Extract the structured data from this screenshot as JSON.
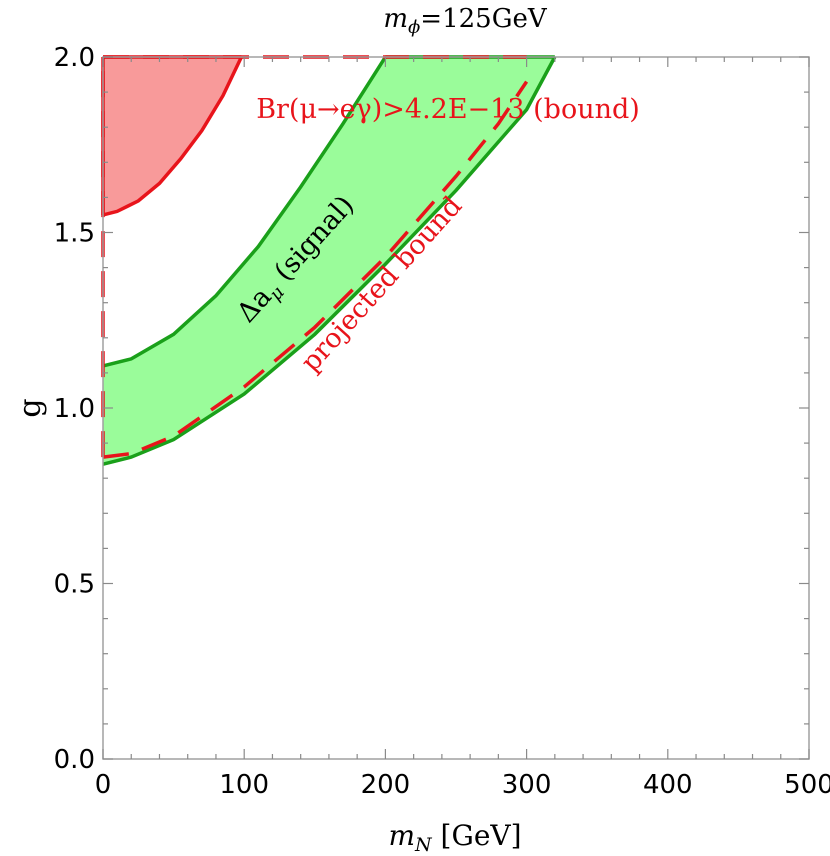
{
  "chart_data": {
    "type": "area",
    "title_main": "m",
    "title_sub": "ϕ",
    "title_rest": "=125GeV",
    "xlabel_main": "m",
    "xlabel_sub": "N",
    "xlabel_rest": " [GeV]",
    "ylabel": "g",
    "xlim": [
      0,
      500
    ],
    "ylim": [
      0,
      2
    ],
    "x_ticks": [
      "0",
      "100",
      "200",
      "300",
      "400",
      "500"
    ],
    "y_ticks": [
      "0.0",
      "0.5",
      "1.0",
      "1.5",
      "2.0"
    ],
    "grid": false,
    "annotations": {
      "bound_label": "Br(μ→eγ)>4.2E−13 (bound)",
      "signal_label_delta": "Δa",
      "signal_label_sub": "μ",
      "signal_label_rest": " (signal)",
      "projected_label": "projected bound"
    },
    "colors": {
      "bound_fill": "#f89a9a",
      "bound_line": "#e8141b",
      "signal_fill": "#9afc9a",
      "signal_line": "#1aa01a",
      "projected_line": "#e8141b"
    },
    "series": [
      {
        "name": "Br(μ→eγ)>4.2E−13 (bound)",
        "kind": "excluded_region",
        "boundary": {
          "x": [
            0,
            10,
            25,
            40,
            55,
            70,
            85,
            98
          ],
          "y": [
            1.55,
            1.56,
            1.59,
            1.64,
            1.71,
            1.79,
            1.89,
            2.0
          ]
        }
      },
      {
        "name": "Δa_μ (signal)",
        "kind": "band",
        "upper": {
          "x": [
            0,
            20,
            50,
            80,
            110,
            140,
            170,
            200
          ],
          "y": [
            1.12,
            1.14,
            1.21,
            1.32,
            1.46,
            1.63,
            1.81,
            2.0
          ]
        },
        "lower": {
          "x": [
            0,
            20,
            50,
            100,
            150,
            200,
            250,
            300,
            320
          ],
          "y": [
            0.84,
            0.86,
            0.91,
            1.04,
            1.21,
            1.41,
            1.62,
            1.85,
            2.0
          ]
        }
      },
      {
        "name": "projected bound",
        "kind": "dashed_line",
        "curve": {
          "x": [
            0,
            20,
            50,
            100,
            150,
            200,
            250,
            280,
            300
          ],
          "y": [
            0.86,
            0.87,
            0.92,
            1.06,
            1.23,
            1.43,
            1.66,
            1.81,
            1.93
          ]
        },
        "top_edge": {
          "x": [
            0,
            300
          ],
          "y": [
            2.0,
            2.0
          ]
        },
        "left_edge": {
          "x": [
            0,
            0
          ],
          "y": [
            0.86,
            2.0
          ]
        }
      }
    ]
  }
}
